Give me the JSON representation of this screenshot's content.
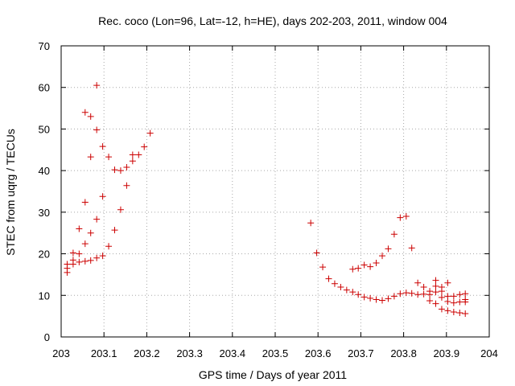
{
  "chart_data": {
    "type": "scatter",
    "title": "Rec. coco (Lon=96, Lat=-12, h=HE), days 202-203, 2011, window 004",
    "xlabel": "GPS time / Days of year 2011",
    "ylabel": "STEC from uqrg / TECUs",
    "xlim": [
      203,
      204
    ],
    "ylim": [
      0,
      70
    ],
    "xticks": [
      "203",
      "203.1",
      "203.2",
      "203.3",
      "203.4",
      "203.5",
      "203.6",
      "203.7",
      "203.8",
      "203.9",
      "204"
    ],
    "yticks": [
      "0",
      "10",
      "20",
      "30",
      "40",
      "50",
      "60",
      "70"
    ],
    "grid": true,
    "marker": "+",
    "color": "#cc0000",
    "series": [
      {
        "points": [
          [
            203.014,
            15.5
          ],
          [
            203.014,
            16.5
          ],
          [
            203.014,
            17.5
          ],
          [
            203.028,
            17.5
          ],
          [
            203.028,
            18.5
          ],
          [
            203.028,
            20.2
          ],
          [
            203.042,
            18.0
          ],
          [
            203.042,
            20.0
          ],
          [
            203.042,
            26.0
          ],
          [
            203.056,
            18.2
          ],
          [
            203.056,
            22.4
          ],
          [
            203.056,
            32.4
          ],
          [
            203.056,
            54.0
          ],
          [
            203.069,
            18.4
          ],
          [
            203.069,
            25.0
          ],
          [
            203.069,
            43.3
          ],
          [
            203.069,
            53.0
          ],
          [
            203.083,
            19.0
          ],
          [
            203.083,
            28.3
          ],
          [
            203.083,
            49.8
          ],
          [
            203.083,
            60.5
          ],
          [
            203.097,
            19.5
          ],
          [
            203.097,
            33.8
          ],
          [
            203.097,
            45.8
          ],
          [
            203.111,
            21.8
          ],
          [
            203.111,
            43.3
          ],
          [
            203.125,
            25.7
          ],
          [
            203.125,
            40.2
          ],
          [
            203.139,
            30.6
          ],
          [
            203.139,
            40.0
          ],
          [
            203.153,
            36.4
          ],
          [
            203.153,
            40.8
          ],
          [
            203.167,
            42.3
          ],
          [
            203.167,
            43.8
          ],
          [
            203.181,
            43.8
          ],
          [
            203.194,
            45.7
          ],
          [
            203.208,
            49.0
          ],
          [
            203.583,
            27.4
          ],
          [
            203.597,
            20.2
          ],
          [
            203.611,
            16.8
          ],
          [
            203.625,
            14.0
          ],
          [
            203.639,
            12.8
          ],
          [
            203.653,
            12.0
          ],
          [
            203.667,
            11.3
          ],
          [
            203.681,
            10.8
          ],
          [
            203.681,
            16.3
          ],
          [
            203.694,
            10.2
          ],
          [
            203.694,
            16.5
          ],
          [
            203.708,
            9.6
          ],
          [
            203.708,
            17.3
          ],
          [
            203.722,
            9.3
          ],
          [
            203.722,
            16.9
          ],
          [
            203.736,
            9.0
          ],
          [
            203.736,
            17.8
          ],
          [
            203.75,
            8.8
          ],
          [
            203.75,
            19.5
          ],
          [
            203.764,
            9.2
          ],
          [
            203.764,
            21.2
          ],
          [
            203.778,
            9.8
          ],
          [
            203.778,
            24.7
          ],
          [
            203.792,
            10.4
          ],
          [
            203.792,
            28.7
          ],
          [
            203.806,
            10.6
          ],
          [
            203.806,
            29.0
          ],
          [
            203.819,
            10.5
          ],
          [
            203.819,
            21.4
          ],
          [
            203.833,
            10.2
          ],
          [
            203.833,
            13.0
          ],
          [
            203.847,
            10.3
          ],
          [
            203.847,
            12.0
          ],
          [
            203.861,
            8.7
          ],
          [
            203.861,
            10.2
          ],
          [
            203.861,
            11.0
          ],
          [
            203.875,
            8.0
          ],
          [
            203.875,
            10.8
          ],
          [
            203.875,
            12.2
          ],
          [
            203.875,
            13.6
          ],
          [
            203.889,
            6.7
          ],
          [
            203.889,
            9.5
          ],
          [
            203.889,
            11.0
          ],
          [
            203.889,
            12.0
          ],
          [
            203.903,
            6.3
          ],
          [
            203.903,
            8.5
          ],
          [
            203.903,
            9.8
          ],
          [
            203.903,
            13.0
          ],
          [
            203.917,
            6.0
          ],
          [
            203.917,
            8.2
          ],
          [
            203.917,
            9.8
          ],
          [
            203.931,
            5.8
          ],
          [
            203.931,
            8.4
          ],
          [
            203.931,
            10.2
          ],
          [
            203.944,
            5.6
          ],
          [
            203.944,
            8.4
          ],
          [
            203.944,
            9.0
          ],
          [
            203.944,
            10.4
          ]
        ]
      }
    ]
  }
}
